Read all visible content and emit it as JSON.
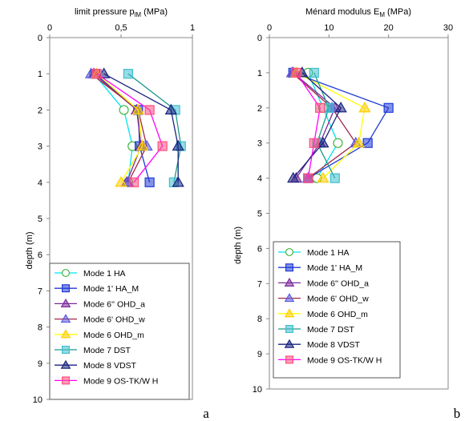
{
  "chart_data": [
    {
      "type": "line",
      "panel_label": "a",
      "title_main": "limit pressure p",
      "title_sub": "lM",
      "title_unit": " (MPa)",
      "ylabel": "depth (m)",
      "xlim": [
        0,
        1
      ],
      "ylim": [
        10,
        0
      ],
      "x_ticks": [
        "0",
        "0,5",
        "1"
      ],
      "x_tick_values": [
        0,
        0.5,
        1
      ],
      "y_ticks": [
        "0",
        "1",
        "2",
        "3",
        "4",
        "5",
        "6",
        "7",
        "8",
        "9",
        "10"
      ],
      "y_tick_values": [
        0,
        1,
        2,
        3,
        4,
        5,
        6,
        7,
        8,
        9,
        10
      ],
      "legend_position": "bottom",
      "series": [
        {
          "name": "Mode 1 HA",
          "color": "#00e5ee",
          "marker": "circle",
          "marker_color": "#22aa22",
          "points": [
            [
              0.31,
              1
            ],
            [
              0.52,
              2
            ],
            [
              0.58,
              3
            ],
            [
              0.55,
              4
            ]
          ]
        },
        {
          "name": "Mode 1' HA_M",
          "color": "#1f3ad6",
          "marker": "square",
          "marker_color": "#1f3ad6",
          "points": [
            [
              0.32,
              1
            ],
            [
              0.62,
              2
            ],
            [
              0.63,
              3
            ],
            [
              0.7,
              4
            ]
          ]
        },
        {
          "name": "Mode 6'' OHD_a",
          "color": "#7a2a9a",
          "marker": "triangle",
          "marker_color": "#7a2a9a",
          "points": [
            [
              0.31,
              1
            ],
            [
              0.61,
              2
            ],
            [
              0.64,
              3
            ],
            [
              0.54,
              4
            ]
          ]
        },
        {
          "name": "Mode 6' OHD_w",
          "color": "#a22a4a",
          "marker": "triangle",
          "marker_color": "#5a5ae0",
          "points": [
            [
              0.29,
              1
            ],
            [
              0.62,
              2
            ],
            [
              0.68,
              3
            ],
            [
              0.55,
              4
            ]
          ]
        },
        {
          "name": "Mode 6 OHD_m",
          "color": "#ffff00",
          "marker": "triangle",
          "marker_color": "#ffcc00",
          "points": [
            [
              0.33,
              1
            ],
            [
              0.62,
              2
            ],
            [
              0.65,
              3
            ],
            [
              0.5,
              4
            ]
          ]
        },
        {
          "name": "Mode 7 DST",
          "color": "#1e9a8a",
          "marker": "square",
          "marker_color": "#3fbfcf",
          "points": [
            [
              0.55,
              1
            ],
            [
              0.88,
              2
            ],
            [
              0.92,
              3
            ],
            [
              0.87,
              4
            ]
          ]
        },
        {
          "name": "Mode 8  VDST",
          "color": "#1a237e",
          "marker": "triangle",
          "marker_color": "#1a237e",
          "points": [
            [
              0.38,
              1
            ],
            [
              0.85,
              2
            ],
            [
              0.9,
              3
            ],
            [
              0.9,
              4
            ]
          ]
        },
        {
          "name": "Mode 9 OS-TK/W H",
          "color": "#ff00ff",
          "marker": "square",
          "marker_color": "#ff4f7f",
          "points": [
            [
              0.33,
              1
            ],
            [
              0.7,
              2
            ],
            [
              0.79,
              3
            ],
            [
              0.59,
              4
            ]
          ]
        }
      ]
    },
    {
      "type": "line",
      "panel_label": "b",
      "title_main": "Ménard modulus  E",
      "title_sub": "M",
      "title_unit": " (MPa)",
      "ylabel": "depth (m)",
      "xlim": [
        0,
        30
      ],
      "ylim": [
        10,
        0
      ],
      "x_ticks": [
        "0",
        "10",
        "20",
        "30"
      ],
      "x_tick_values": [
        0,
        10,
        20,
        30
      ],
      "y_ticks": [
        "0",
        "1",
        "2",
        "3",
        "4",
        "5",
        "6",
        "7",
        "8",
        "9",
        "10"
      ],
      "y_tick_values": [
        0,
        1,
        2,
        3,
        4,
        5,
        6,
        7,
        8,
        9,
        10
      ],
      "legend_position": "bottom",
      "series": [
        {
          "name": "Mode 1 HA",
          "color": "#00e5ee",
          "marker": "circle",
          "marker_color": "#22aa22",
          "points": [
            [
              6.5,
              1
            ],
            [
              9.0,
              2
            ],
            [
              11.5,
              3
            ],
            [
              8.0,
              4
            ]
          ]
        },
        {
          "name": "Mode 1' HA_M",
          "color": "#1f3ad6",
          "marker": "square",
          "marker_color": "#1f3ad6",
          "points": [
            [
              4.0,
              1
            ],
            [
              20.0,
              2
            ],
            [
              16.5,
              3
            ],
            [
              6.5,
              4
            ]
          ]
        },
        {
          "name": "Mode 6'' OHD_a",
          "color": "#7a2a9a",
          "marker": "triangle",
          "marker_color": "#7a2a9a",
          "points": [
            [
              4.0,
              1
            ],
            [
              11.0,
              2
            ],
            [
              8.5,
              3
            ],
            [
              4.5,
              4
            ]
          ]
        },
        {
          "name": "Mode 6' OHD_w",
          "color": "#a22a4a",
          "marker": "triangle",
          "marker_color": "#5a5ae0",
          "points": [
            [
              3.8,
              1
            ],
            [
              10.5,
              2
            ],
            [
              14.5,
              3
            ],
            [
              6.5,
              4
            ]
          ]
        },
        {
          "name": "Mode 6 OHD_m",
          "color": "#ffff00",
          "marker": "triangle",
          "marker_color": "#ffcc00",
          "points": [
            [
              4.5,
              1
            ],
            [
              16.0,
              2
            ],
            [
              15.0,
              3
            ],
            [
              9.0,
              4
            ]
          ]
        },
        {
          "name": "Mode 7 DST",
          "color": "#1e9a8a",
          "marker": "square",
          "marker_color": "#3fbfcf",
          "points": [
            [
              7.5,
              1
            ],
            [
              10.0,
              2
            ],
            [
              8.0,
              3
            ],
            [
              11.0,
              4
            ]
          ]
        },
        {
          "name": "Mode 8  VDST",
          "color": "#1a237e",
          "marker": "triangle",
          "marker_color": "#1a237e",
          "points": [
            [
              5.5,
              1
            ],
            [
              12.0,
              2
            ],
            [
              9.0,
              3
            ],
            [
              4.0,
              4
            ]
          ]
        },
        {
          "name": "Mode 9 OS-TK/W H",
          "color": "#ff00ff",
          "marker": "square",
          "marker_color": "#ff4f7f",
          "points": [
            [
              4.5,
              1
            ],
            [
              8.5,
              2
            ],
            [
              7.5,
              3
            ],
            [
              6.5,
              4
            ]
          ]
        }
      ]
    }
  ]
}
